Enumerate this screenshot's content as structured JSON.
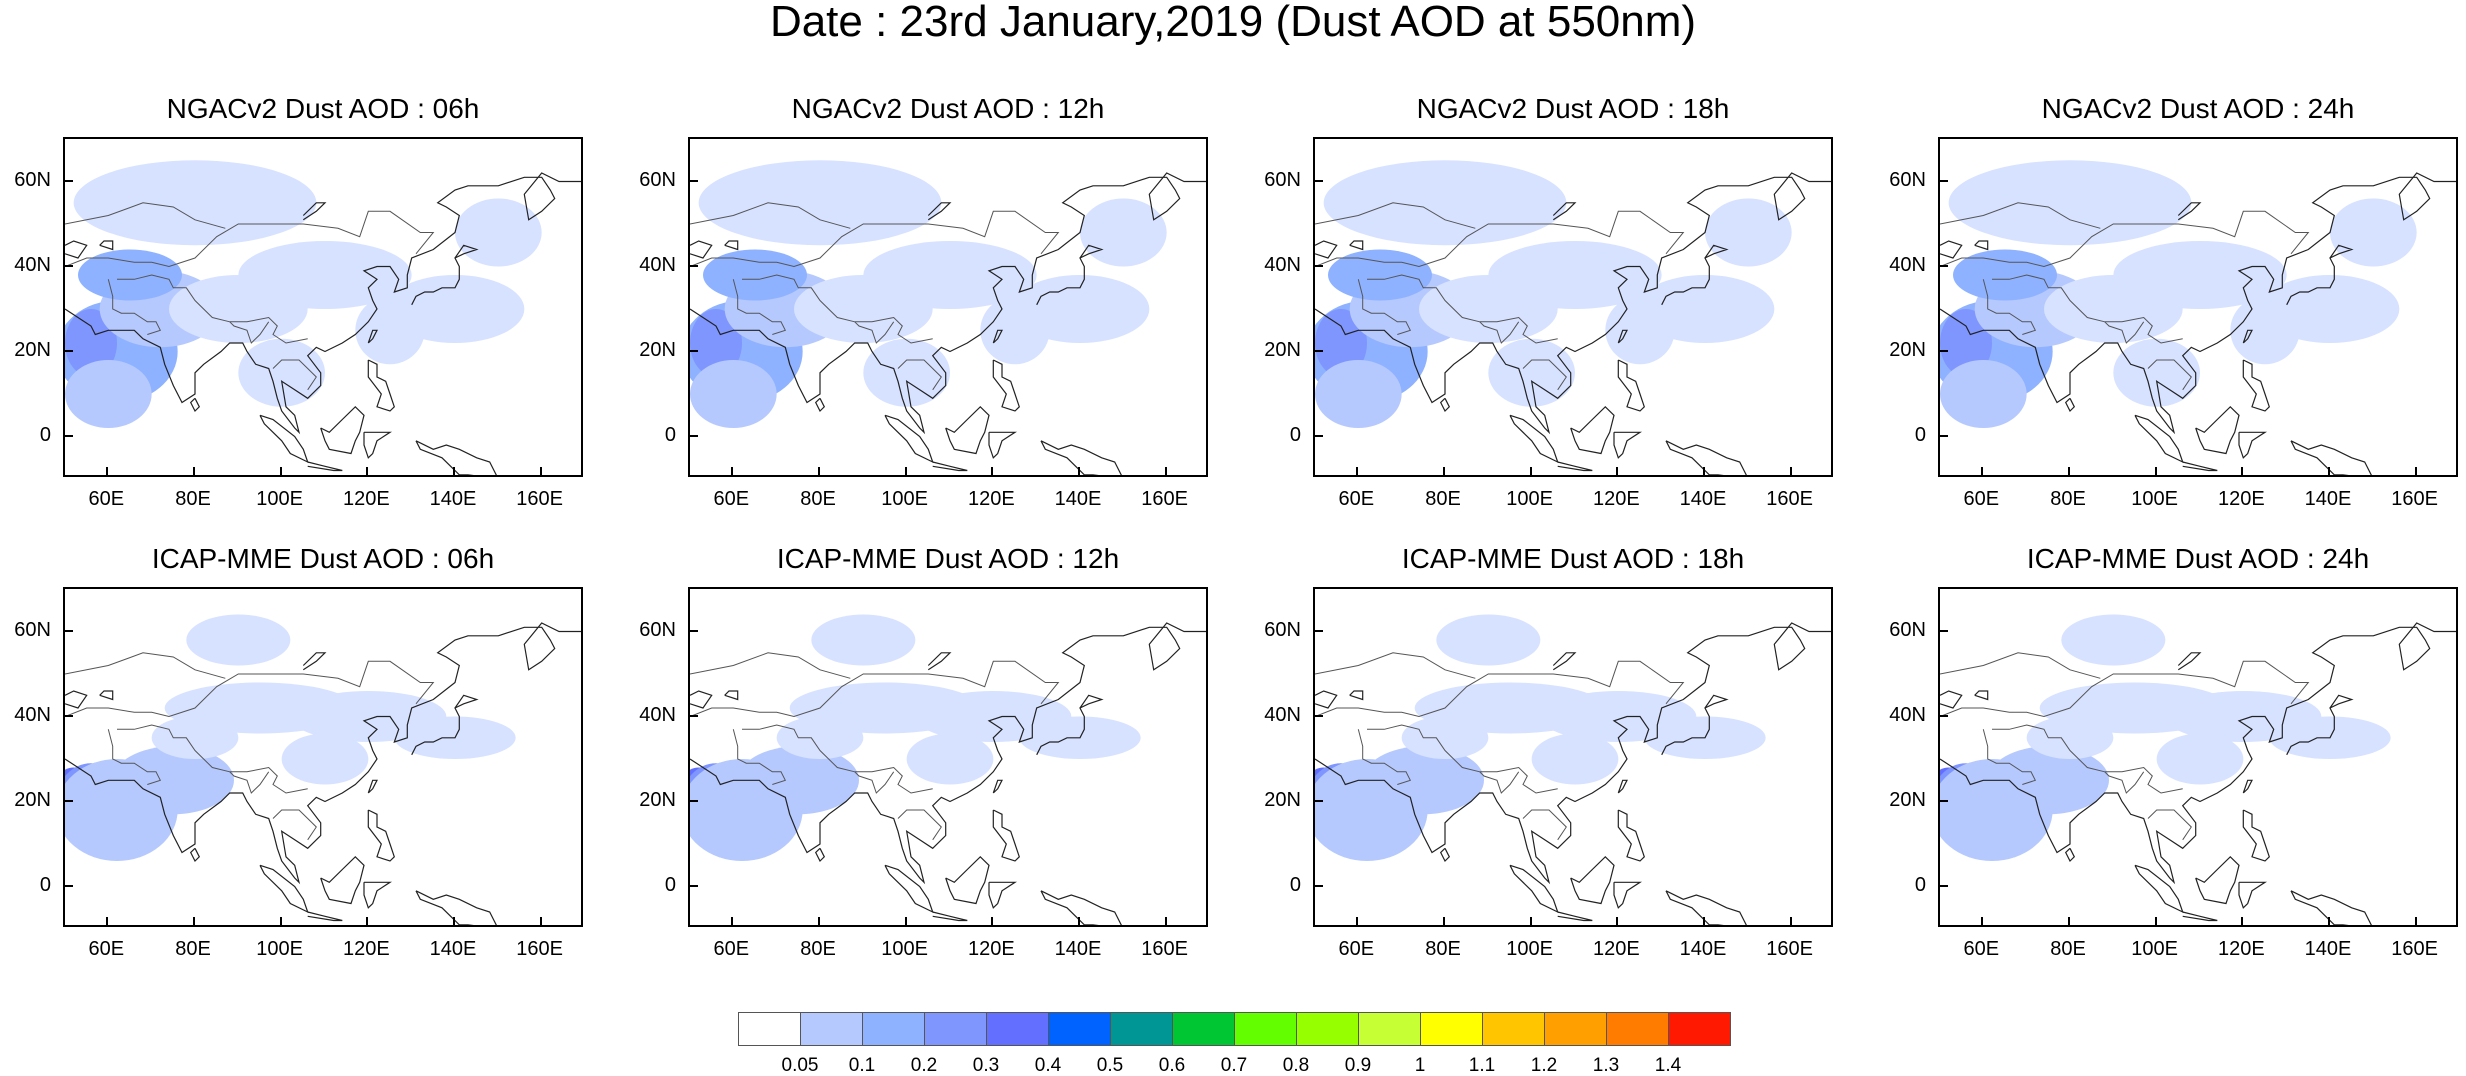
{
  "title": "Date : 23rd January,2019 (Dust AOD at 550nm)",
  "lat_ticks": [
    "60N",
    "40N",
    "20N",
    "0"
  ],
  "lon_ticks": [
    "60E",
    "80E",
    "100E",
    "120E",
    "140E",
    "160E"
  ],
  "panels": [
    {
      "title": "NGACv2 Dust AOD : 06h",
      "model": "NGACv2",
      "hour": "06h",
      "max_level": 4
    },
    {
      "title": "NGACv2 Dust AOD : 12h",
      "model": "NGACv2",
      "hour": "12h",
      "max_level": 4
    },
    {
      "title": "NGACv2 Dust AOD : 18h",
      "model": "NGACv2",
      "hour": "18h",
      "max_level": 4
    },
    {
      "title": "NGACv2 Dust AOD : 24h",
      "model": "NGACv2",
      "hour": "24h",
      "max_level": 4
    },
    {
      "title": "ICAP-MME Dust AOD : 06h",
      "model": "ICAP-MME",
      "hour": "06h",
      "max_level": 5
    },
    {
      "title": "ICAP-MME Dust AOD : 12h",
      "model": "ICAP-MME",
      "hour": "12h",
      "max_level": 5
    },
    {
      "title": "ICAP-MME Dust AOD : 18h",
      "model": "ICAP-MME",
      "hour": "18h",
      "max_level": 5
    },
    {
      "title": "ICAP-MME Dust AOD : 24h",
      "model": "ICAP-MME",
      "hour": "24h",
      "max_level": 5
    }
  ],
  "colorbar": {
    "labels": [
      "0.05",
      "0.1",
      "0.2",
      "0.3",
      "0.4",
      "0.5",
      "0.6",
      "0.7",
      "0.8",
      "0.9",
      "1",
      "1.1",
      "1.2",
      "1.3",
      "1.4"
    ],
    "colors": [
      "#ffffff",
      "#d6e2ff",
      "#b5c9ff",
      "#8eb2ff",
      "#7f96ff",
      "#6370ff",
      "#0063ff",
      "#009696",
      "#00c633",
      "#63ff00",
      "#96ff00",
      "#c6ff33",
      "#ffff00",
      "#ffc600",
      "#ffa000",
      "#ff7c00",
      "#ff1900"
    ]
  }
}
